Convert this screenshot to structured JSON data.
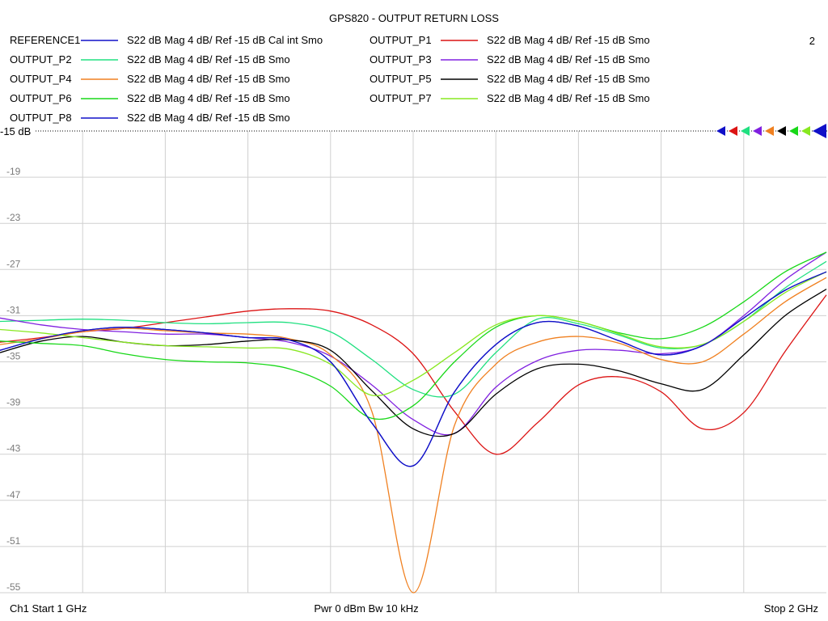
{
  "title": "GPS820 - OUTPUT RETURN LOSS",
  "channel_number": "2",
  "footer": {
    "start": "Ch1  Start  1 GHz",
    "mid": "Pwr  0 dBm  Bw  10 kHz",
    "stop": "Stop  2 GHz"
  },
  "ref_label": "-15 dB",
  "chart_data": {
    "type": "line",
    "title": "GPS820 - OUTPUT RETURN LOSS",
    "xlabel": "",
    "ylabel": "",
    "x_unit": "GHz",
    "xlim": [
      1,
      2
    ],
    "ylim": [
      -55,
      -15
    ],
    "y_ticks": [
      -15,
      -19,
      -23,
      -27,
      -31,
      -35,
      -39,
      -43,
      -47,
      -51,
      -55
    ],
    "y_tick_labels": [
      "-15",
      "-19",
      "-23",
      "-27",
      "-31",
      "-35",
      "-39",
      "-43",
      "-47",
      "-51",
      "-55"
    ],
    "grid": true,
    "series": [
      {
        "name": "REFERENCE1",
        "desc": "S22  dB Mag  4 dB/ Ref -15 dB  Cal int Smo",
        "color": "#1010c8",
        "x": [
          1.0,
          1.05,
          1.1,
          1.15,
          1.2,
          1.25,
          1.3,
          1.35,
          1.4,
          1.45,
          1.5,
          1.55,
          1.6,
          1.65,
          1.7,
          1.75,
          1.8,
          1.85,
          1.9,
          1.95,
          2.0
        ],
        "y": [
          -34.0,
          -33.0,
          -32.3,
          -32.0,
          -32.2,
          -32.5,
          -32.9,
          -33.1,
          -35.0,
          -40.3,
          -44.0,
          -37.6,
          -33.5,
          -31.6,
          -31.9,
          -33.2,
          -34.4,
          -33.6,
          -31.2,
          -28.8,
          -27.2
        ]
      },
      {
        "name": "OUTPUT_P1",
        "desc": "S22  dB Mag  4 dB/ Ref -15 dB  Smo",
        "color": "#dc1414",
        "x": [
          1.0,
          1.05,
          1.1,
          1.15,
          1.2,
          1.25,
          1.3,
          1.35,
          1.4,
          1.45,
          1.5,
          1.55,
          1.6,
          1.65,
          1.7,
          1.75,
          1.8,
          1.85,
          1.9,
          1.95,
          2.0
        ],
        "y": [
          -33.3,
          -32.9,
          -32.4,
          -32.1,
          -31.6,
          -31.1,
          -30.6,
          -30.4,
          -30.6,
          -31.8,
          -34.3,
          -39.3,
          -43.0,
          -40.3,
          -37.0,
          -36.3,
          -37.6,
          -40.8,
          -39.4,
          -34.1,
          -29.2
        ]
      },
      {
        "name": "OUTPUT_P2",
        "desc": "S22  dB Mag  4 dB/ Ref -15 dB  Smo",
        "color": "#20e080",
        "x": [
          1.0,
          1.05,
          1.1,
          1.15,
          1.2,
          1.25,
          1.3,
          1.35,
          1.4,
          1.45,
          1.5,
          1.55,
          1.6,
          1.65,
          1.7,
          1.75,
          1.8,
          1.85,
          1.9,
          1.95,
          2.0
        ],
        "y": [
          -31.5,
          -31.4,
          -31.3,
          -31.4,
          -31.6,
          -31.7,
          -31.6,
          -31.6,
          -32.4,
          -34.8,
          -37.4,
          -37.8,
          -34.2,
          -31.3,
          -31.7,
          -32.7,
          -33.8,
          -33.5,
          -31.5,
          -28.6,
          -26.3
        ]
      },
      {
        "name": "OUTPUT_P3",
        "desc": "S22  dB Mag  4 dB/ Ref -15 dB  Smo",
        "color": "#8020e0",
        "x": [
          1.0,
          1.05,
          1.1,
          1.15,
          1.2,
          1.25,
          1.3,
          1.35,
          1.4,
          1.45,
          1.5,
          1.55,
          1.6,
          1.65,
          1.7,
          1.75,
          1.8,
          1.85,
          1.9,
          1.95,
          2.0
        ],
        "y": [
          -31.2,
          -31.8,
          -32.2,
          -32.4,
          -32.6,
          -32.6,
          -32.9,
          -33.3,
          -34.5,
          -37.0,
          -40.0,
          -41.2,
          -37.2,
          -34.9,
          -34.0,
          -34.0,
          -34.3,
          -33.6,
          -31.0,
          -27.9,
          -25.5
        ]
      },
      {
        "name": "OUTPUT_P4",
        "desc": "S22  dB Mag  4 dB/ Ref -15 dB  Smo",
        "color": "#f08020",
        "x": [
          1.0,
          1.05,
          1.1,
          1.15,
          1.2,
          1.25,
          1.3,
          1.35,
          1.4,
          1.45,
          1.5,
          1.55,
          1.6,
          1.65,
          1.7,
          1.75,
          1.8,
          1.85,
          1.9,
          1.95,
          2.0
        ],
        "y": [
          -33.5,
          -33.0,
          -32.4,
          -32.1,
          -32.3,
          -32.5,
          -32.6,
          -33.0,
          -34.4,
          -39.3,
          -55.0,
          -40.5,
          -35.2,
          -33.3,
          -32.8,
          -33.4,
          -34.8,
          -35.0,
          -32.6,
          -29.8,
          -27.7
        ]
      },
      {
        "name": "OUTPUT_P5",
        "desc": "S22  dB Mag  4 dB/ Ref -15 dB  Smo",
        "color": "#000000",
        "x": [
          1.0,
          1.05,
          1.1,
          1.15,
          1.2,
          1.25,
          1.3,
          1.35,
          1.4,
          1.45,
          1.5,
          1.55,
          1.6,
          1.65,
          1.7,
          1.75,
          1.8,
          1.85,
          1.9,
          1.95,
          2.0
        ],
        "y": [
          -34.2,
          -33.2,
          -32.8,
          -33.3,
          -33.6,
          -33.5,
          -33.2,
          -33.1,
          -34.0,
          -37.5,
          -40.8,
          -41.2,
          -37.8,
          -35.6,
          -35.2,
          -35.8,
          -36.9,
          -37.4,
          -34.4,
          -31.0,
          -28.7
        ]
      },
      {
        "name": "OUTPUT_P6",
        "desc": "S22  dB Mag  4 dB/ Ref -15 dB  Smo",
        "color": "#18d818",
        "x": [
          1.0,
          1.05,
          1.1,
          1.15,
          1.2,
          1.25,
          1.3,
          1.35,
          1.4,
          1.45,
          1.5,
          1.55,
          1.6,
          1.65,
          1.7,
          1.75,
          1.8,
          1.85,
          1.9,
          1.95,
          2.0
        ],
        "y": [
          -33.2,
          -33.4,
          -33.6,
          -34.3,
          -34.8,
          -35.0,
          -35.1,
          -35.6,
          -37.1,
          -39.9,
          -38.8,
          -35.0,
          -32.0,
          -31.0,
          -31.5,
          -32.5,
          -33.0,
          -32.0,
          -29.8,
          -27.2,
          -25.5
        ]
      },
      {
        "name": "OUTPUT_P7",
        "desc": "S22  dB Mag  4 dB/ Ref -15 dB  Smo",
        "color": "#88e820",
        "x": [
          1.0,
          1.05,
          1.1,
          1.15,
          1.2,
          1.25,
          1.3,
          1.35,
          1.4,
          1.45,
          1.5,
          1.55,
          1.6,
          1.65,
          1.7,
          1.75,
          1.8,
          1.85,
          1.9,
          1.95,
          2.0
        ],
        "y": [
          -32.2,
          -32.5,
          -32.9,
          -33.3,
          -33.6,
          -33.7,
          -33.8,
          -33.9,
          -35.2,
          -37.9,
          -36.6,
          -34.2,
          -31.8,
          -31.0,
          -31.5,
          -32.6,
          -33.7,
          -33.5,
          -31.5,
          -29.0,
          -27.2
        ]
      },
      {
        "name": "OUTPUT_P8",
        "desc": "S22  dB Mag  4 dB/ Ref -15 dB  Smo",
        "color": "#1010c8",
        "x": [
          1.0,
          1.05,
          1.1,
          1.15,
          1.2,
          1.25,
          1.3,
          1.35,
          1.4,
          1.45,
          1.5,
          1.55,
          1.6,
          1.65,
          1.7,
          1.75,
          1.8,
          1.85,
          1.9,
          1.95,
          2.0
        ],
        "y": [
          -34.0,
          -33.0,
          -32.3,
          -32.0,
          -32.2,
          -32.5,
          -32.9,
          -33.1,
          -35.0,
          -40.3,
          -44.0,
          -37.6,
          -33.5,
          -31.6,
          -31.9,
          -33.2,
          -34.4,
          -33.6,
          -31.2,
          -28.8,
          -27.2
        ]
      }
    ],
    "legend": {
      "placement": "top",
      "columns": 2
    }
  }
}
